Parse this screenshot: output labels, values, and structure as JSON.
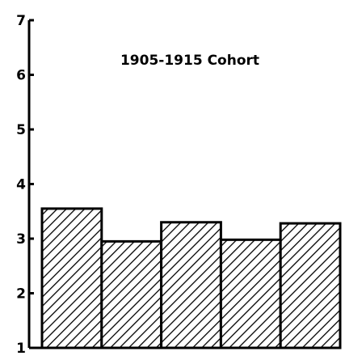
{
  "chart_data": {
    "type": "bar",
    "title": "1905-1915 Cohort",
    "xlabel": "",
    "ylabel": "",
    "ylim": [
      1,
      7
    ],
    "yticks": [
      "1",
      "2",
      "3",
      "4",
      "5",
      "6",
      "7"
    ],
    "categories": [
      "",
      "",
      "",
      "",
      ""
    ],
    "values": [
      3.55,
      2.95,
      3.3,
      2.98,
      3.28
    ],
    "bar_fill": "diagonal hatch",
    "grid": false,
    "legend": "none"
  },
  "colors": {
    "ink": "#000000",
    "background": "#ffffff"
  }
}
